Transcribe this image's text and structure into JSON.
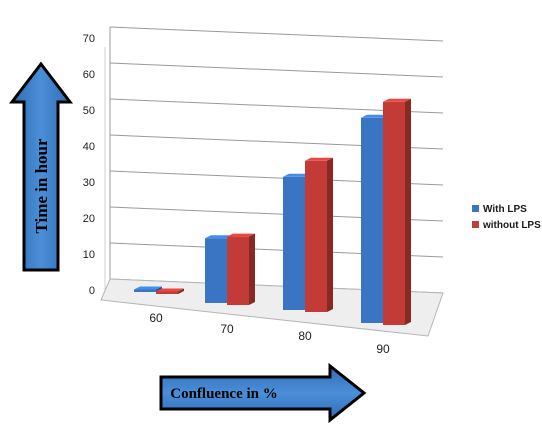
{
  "chart_data": {
    "type": "bar",
    "categories": [
      "60",
      "70",
      "80",
      "90"
    ],
    "series": [
      {
        "name": "With LPS",
        "values": [
          0,
          18,
          37,
          57
        ],
        "color": "#3a75c4"
      },
      {
        "name": "without LPS",
        "values": [
          0,
          19,
          42,
          62
        ],
        "color": "#c23b36"
      }
    ],
    "ylim": [
      0,
      70
    ],
    "yticks": [
      0,
      10,
      20,
      30,
      40,
      50,
      60,
      70
    ],
    "ylabel": "Time in hour",
    "xlabel": "Confluence in %",
    "legend_position": "right",
    "grid": true,
    "style": "3d-clustered"
  },
  "arrow_color": "#3a78bf"
}
